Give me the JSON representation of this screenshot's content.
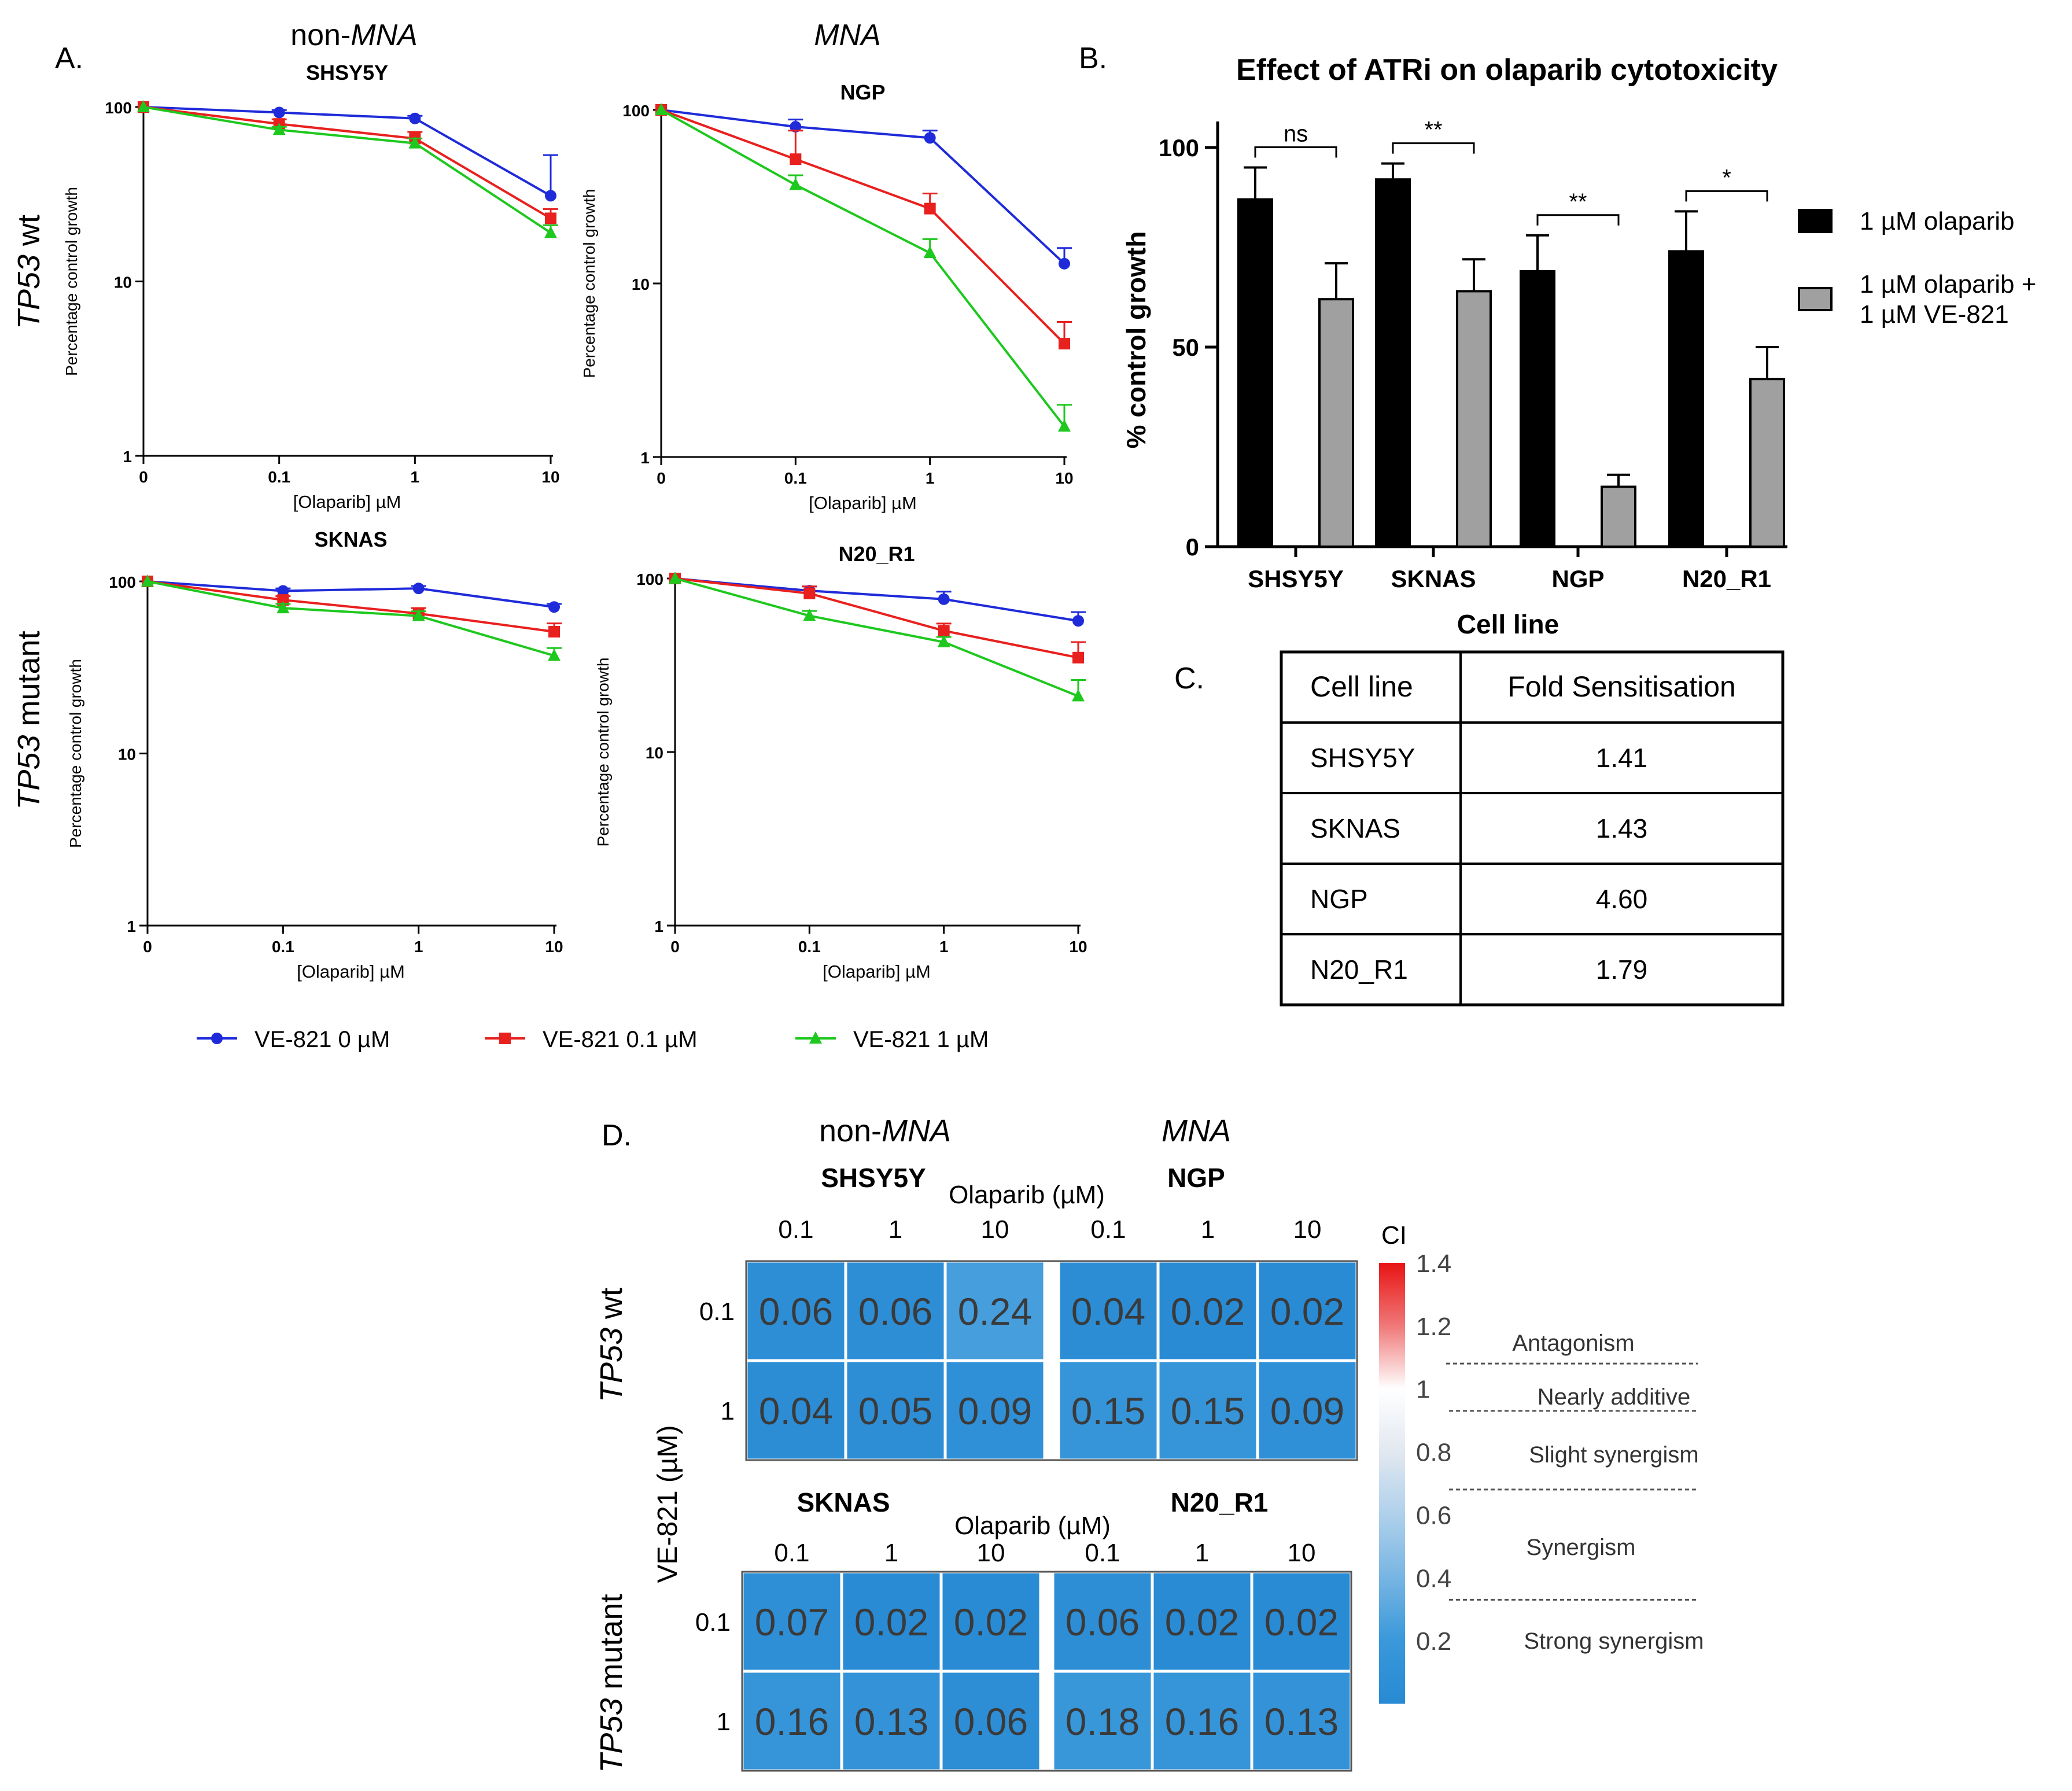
{
  "panel_labels": {
    "a": "A.",
    "b": "B.",
    "c": "C.",
    "d": "D."
  },
  "column_groups": {
    "non_prefix": "non-",
    "mna": "MNA"
  },
  "row_groups": {
    "tp53": "TP53",
    "wt_suffix": " wt",
    "mutant_suffix": " mutant"
  },
  "series_colors": [
    "#1f2bd9",
    "#e8201e",
    "#1ec81e"
  ],
  "chart_data": [
    {
      "type": "line",
      "id": "SHSY5Y",
      "title": "SHSY5Y",
      "xlabel": "[Olaparib] µM",
      "ylabel": "Percentage control growth",
      "x_ticks": [
        "0",
        "0.1",
        "1",
        "10"
      ],
      "y_ticks": [
        "100",
        "10",
        "1"
      ],
      "y_scale": "log",
      "ylim": [
        1,
        100
      ],
      "series": [
        {
          "name": "VE-821 0 µM",
          "values": [
            100,
            93,
            86,
            31
          ],
          "err": [
            0,
            3,
            3,
            22
          ]
        },
        {
          "name": "VE-821 0.1 µM",
          "values": [
            100,
            80,
            66,
            23
          ],
          "err": [
            0,
            5,
            6,
            3
          ]
        },
        {
          "name": "VE-821 1 µM",
          "values": [
            100,
            74,
            62,
            19
          ],
          "err": [
            0,
            3,
            4,
            2
          ]
        }
      ]
    },
    {
      "type": "line",
      "id": "NGP",
      "title": "NGP",
      "xlabel": "[Olaparib] µM",
      "ylabel": "Percentage control growth",
      "x_ticks": [
        "0",
        "0.1",
        "1",
        "10"
      ],
      "y_ticks": [
        "100",
        "10",
        "1"
      ],
      "y_scale": "log",
      "ylim": [
        1,
        100
      ],
      "series": [
        {
          "name": "VE-821 0 µM",
          "values": [
            100,
            80,
            69,
            13
          ],
          "err": [
            0,
            8,
            7,
            3
          ]
        },
        {
          "name": "VE-821 0.1 µM",
          "values": [
            100,
            52,
            27,
            4.5
          ],
          "err": [
            0,
            24,
            6,
            1.5
          ]
        },
        {
          "name": "VE-821 1 µM",
          "values": [
            100,
            37,
            15,
            1.5
          ],
          "err": [
            0,
            5,
            3,
            0.5
          ]
        }
      ]
    },
    {
      "type": "line",
      "id": "SKNAS",
      "title": "SKNAS",
      "xlabel": "[Olaparib] µM",
      "ylabel": "Percentage control growth",
      "x_ticks": [
        "0",
        "0.1",
        "1",
        "10"
      ],
      "y_ticks": [
        "100",
        "10",
        "1"
      ],
      "y_scale": "log",
      "ylim": [
        1,
        100
      ],
      "series": [
        {
          "name": "VE-821 0 µM",
          "values": [
            100,
            88,
            91,
            71
          ],
          "err": [
            0,
            3,
            3,
            3
          ]
        },
        {
          "name": "VE-821 0.1 µM",
          "values": [
            100,
            78,
            65,
            51
          ],
          "err": [
            0,
            4,
            5,
            6
          ]
        },
        {
          "name": "VE-821 1 µM",
          "values": [
            100,
            70,
            63,
            37
          ],
          "err": [
            0,
            4,
            4,
            4
          ]
        }
      ]
    },
    {
      "type": "line",
      "id": "N20_R1",
      "title": "N20_R1",
      "xlabel": "[Olaparib] µM",
      "ylabel": "Percentage control growth",
      "x_ticks": [
        "0",
        "0.1",
        "1",
        "10"
      ],
      "y_ticks": [
        "100",
        "10",
        "1"
      ],
      "y_scale": "log",
      "ylim": [
        1,
        100
      ],
      "series": [
        {
          "name": "VE-821 0 µM",
          "values": [
            100,
            85,
            76,
            57
          ],
          "err": [
            0,
            5,
            8,
            7
          ]
        },
        {
          "name": "VE-821 0.1 µM",
          "values": [
            100,
            82,
            50,
            35
          ],
          "err": [
            0,
            8,
            5,
            8
          ]
        },
        {
          "name": "VE-821 1 µM",
          "values": [
            100,
            61,
            43,
            21
          ],
          "err": [
            0,
            4,
            3,
            5
          ]
        }
      ]
    },
    {
      "type": "bar",
      "id": "ATRi-bar",
      "title": "Effect of ATRi on olaparib cytotoxicity",
      "xlabel": "Cell line",
      "ylabel": "% control growth",
      "categories": [
        "SHSY5Y",
        "SKNAS",
        "NGP",
        "N20_R1"
      ],
      "y_ticks": [
        "0",
        "50",
        "100"
      ],
      "ylim": [
        0,
        100
      ],
      "series": [
        {
          "name": "1 µM olaparib",
          "legend_lines": [
            "1 µM olaparib"
          ],
          "color": "#000000",
          "values": [
            87,
            92,
            69,
            74
          ],
          "err": [
            8,
            4,
            9,
            10
          ]
        },
        {
          "name": "1 µM olaparib + 1 µM VE-821",
          "legend_lines": [
            "1 µM olaparib +",
            "1 µM VE-821"
          ],
          "color": "#a0a0a0",
          "values": [
            62,
            64,
            15,
            42
          ],
          "err": [
            9,
            8,
            3,
            8
          ]
        }
      ],
      "significance": [
        "ns",
        "**",
        "**",
        "*"
      ]
    },
    {
      "type": "table",
      "id": "fold-table",
      "columns": [
        "Cell line",
        "Fold Sensitisation"
      ],
      "rows": [
        [
          "SHSY5Y",
          "1.41"
        ],
        [
          "SKNAS",
          "1.43"
        ],
        [
          "NGP",
          "4.60"
        ],
        [
          "N20_R1",
          "1.79"
        ]
      ]
    },
    {
      "type": "heatmap",
      "id": "ci-heatmap",
      "x_title": "Olaparib (µM)",
      "y_title": "VE-821 (µM)",
      "x_ticks": [
        "0.1",
        "1",
        "10"
      ],
      "y_ticks": [
        "0.1",
        "1"
      ],
      "blocks": [
        {
          "name": "SHSY5Y",
          "values": [
            [
              "0.06",
              "0.06",
              "0.24"
            ],
            [
              "0.04",
              "0.05",
              "0.09"
            ]
          ]
        },
        {
          "name": "NGP",
          "values": [
            [
              "0.04",
              "0.02",
              "0.02"
            ],
            [
              "0.15",
              "0.15",
              "0.09"
            ]
          ]
        },
        {
          "name": "SKNAS",
          "values": [
            [
              "0.07",
              "0.02",
              "0.02"
            ],
            [
              "0.16",
              "0.13",
              "0.06"
            ]
          ]
        },
        {
          "name": "N20_R1",
          "values": [
            [
              "0.06",
              "0.02",
              "0.02"
            ],
            [
              "0.18",
              "0.16",
              "0.13"
            ]
          ]
        }
      ],
      "colorbar": {
        "title": "CI",
        "range": [
          0,
          1.4
        ],
        "ticks": [
          "1.4",
          "1.2",
          "1",
          "0.8",
          "0.6",
          "0.4",
          "0.2"
        ],
        "zones": [
          "Antagonism",
          "Nearly additive",
          "Slight synergism",
          "Synergism",
          "Strong synergism"
        ]
      }
    }
  ]
}
